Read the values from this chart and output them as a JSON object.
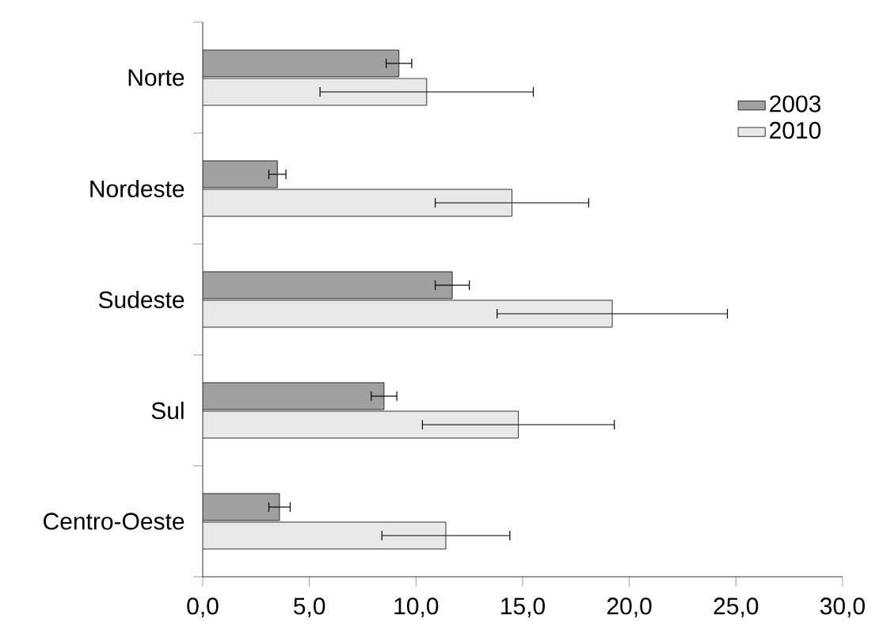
{
  "chart_data": {
    "type": "bar",
    "orientation": "horizontal",
    "categories": [
      "Norte",
      "Nordeste",
      "Sudeste",
      "Sul",
      "Centro-Oeste"
    ],
    "series": [
      {
        "name": "2003",
        "color": "#a0a0a0",
        "values": [
          9.2,
          3.5,
          11.7,
          8.5,
          3.6
        ],
        "errors": [
          0.6,
          0.4,
          0.8,
          0.6,
          0.5
        ]
      },
      {
        "name": "2010",
        "color": "#e8e8e8",
        "values": [
          10.5,
          14.5,
          19.2,
          14.8,
          11.4
        ],
        "errors": [
          5.0,
          3.6,
          5.4,
          4.5,
          3.0
        ]
      }
    ],
    "xlim": [
      0,
      30
    ],
    "xticks": [
      {
        "value": 0,
        "label": "0,0"
      },
      {
        "value": 5,
        "label": "5,0"
      },
      {
        "value": 10,
        "label": "10,0"
      },
      {
        "value": 15,
        "label": "15,0"
      },
      {
        "value": 20,
        "label": "20,0"
      },
      {
        "value": 25,
        "label": "25,0"
      },
      {
        "value": 30,
        "label": "30,0"
      }
    ],
    "legend": "top right",
    "grid": false
  }
}
